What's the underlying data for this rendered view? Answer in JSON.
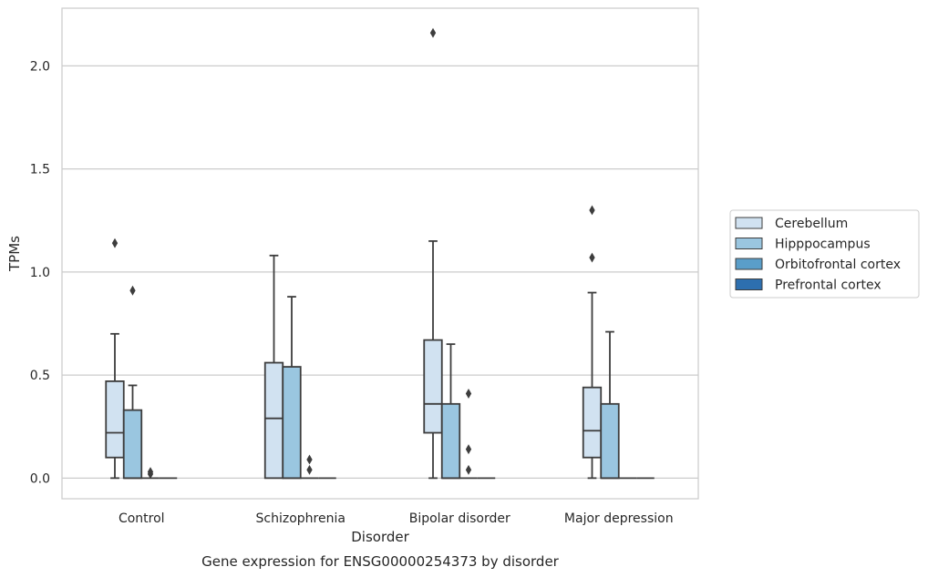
{
  "caption": "Gene expression for ENSG00000254373 by disorder",
  "chart_data": {
    "type": "box",
    "title": "",
    "xlabel": "Disorder",
    "ylabel": "TPMs",
    "ylim": [
      -0.1,
      2.28
    ],
    "yticks": [
      0.0,
      0.5,
      1.0,
      1.5,
      2.0
    ],
    "ytick_labels": [
      "0.0",
      "0.5",
      "1.0",
      "1.5",
      "2.0"
    ],
    "grid": "horizontal",
    "legend_position": "right",
    "categories": [
      "Control",
      "Schizophrenia",
      "Bipolar disorder",
      "Major depression"
    ],
    "series": [
      {
        "name": "Cerebellum",
        "color": "#d1e2f1",
        "boxes": [
          {
            "whisker_low": 0.0,
            "q1": 0.1,
            "median": 0.22,
            "q3": 0.47,
            "whisker_high": 0.7,
            "outliers": [
              1.14
            ]
          },
          {
            "whisker_low": 0.0,
            "q1": 0.0,
            "median": 0.29,
            "q3": 0.56,
            "whisker_high": 1.08,
            "outliers": []
          },
          {
            "whisker_low": 0.0,
            "q1": 0.22,
            "median": 0.36,
            "q3": 0.67,
            "whisker_high": 1.15,
            "outliers": [
              2.16
            ]
          },
          {
            "whisker_low": 0.0,
            "q1": 0.1,
            "median": 0.23,
            "q3": 0.44,
            "whisker_high": 0.9,
            "outliers": [
              1.07,
              1.3
            ]
          }
        ]
      },
      {
        "name": "Hipppocampus",
        "color": "#9ac6e0",
        "boxes": [
          {
            "whisker_low": 0.0,
            "q1": 0.0,
            "median": 0.0,
            "q3": 0.33,
            "whisker_high": 0.45,
            "outliers": [
              0.91
            ]
          },
          {
            "whisker_low": 0.0,
            "q1": 0.0,
            "median": 0.0,
            "q3": 0.54,
            "whisker_high": 0.88,
            "outliers": []
          },
          {
            "whisker_low": 0.0,
            "q1": 0.0,
            "median": 0.0,
            "q3": 0.36,
            "whisker_high": 0.65,
            "outliers": []
          },
          {
            "whisker_low": 0.0,
            "q1": 0.0,
            "median": 0.0,
            "q3": 0.36,
            "whisker_high": 0.71,
            "outliers": []
          }
        ]
      },
      {
        "name": "Orbitofrontal cortex",
        "color": "#5a9ec9",
        "boxes": [
          {
            "whisker_low": 0.0,
            "q1": 0.0,
            "median": 0.0,
            "q3": 0.0,
            "whisker_high": 0.0,
            "outliers": [
              0.02,
              0.03
            ]
          },
          {
            "whisker_low": 0.0,
            "q1": 0.0,
            "median": 0.0,
            "q3": 0.0,
            "whisker_high": 0.0,
            "outliers": [
              0.04,
              0.09
            ]
          },
          {
            "whisker_low": 0.0,
            "q1": 0.0,
            "median": 0.0,
            "q3": 0.0,
            "whisker_high": 0.0,
            "outliers": [
              0.04,
              0.14,
              0.41
            ]
          },
          {
            "whisker_low": 0.0,
            "q1": 0.0,
            "median": 0.0,
            "q3": 0.0,
            "whisker_high": 0.0,
            "outliers": []
          }
        ]
      },
      {
        "name": "Prefrontal cortex",
        "color": "#2d6faf",
        "boxes": [
          {
            "whisker_low": 0.0,
            "q1": 0.0,
            "median": 0.0,
            "q3": 0.0,
            "whisker_high": 0.0,
            "outliers": []
          },
          {
            "whisker_low": 0.0,
            "q1": 0.0,
            "median": 0.0,
            "q3": 0.0,
            "whisker_high": 0.0,
            "outliers": []
          },
          {
            "whisker_low": 0.0,
            "q1": 0.0,
            "median": 0.0,
            "q3": 0.0,
            "whisker_high": 0.0,
            "outliers": []
          },
          {
            "whisker_low": 0.0,
            "q1": 0.0,
            "median": 0.0,
            "q3": 0.0,
            "whisker_high": 0.0,
            "outliers": []
          }
        ]
      }
    ]
  }
}
